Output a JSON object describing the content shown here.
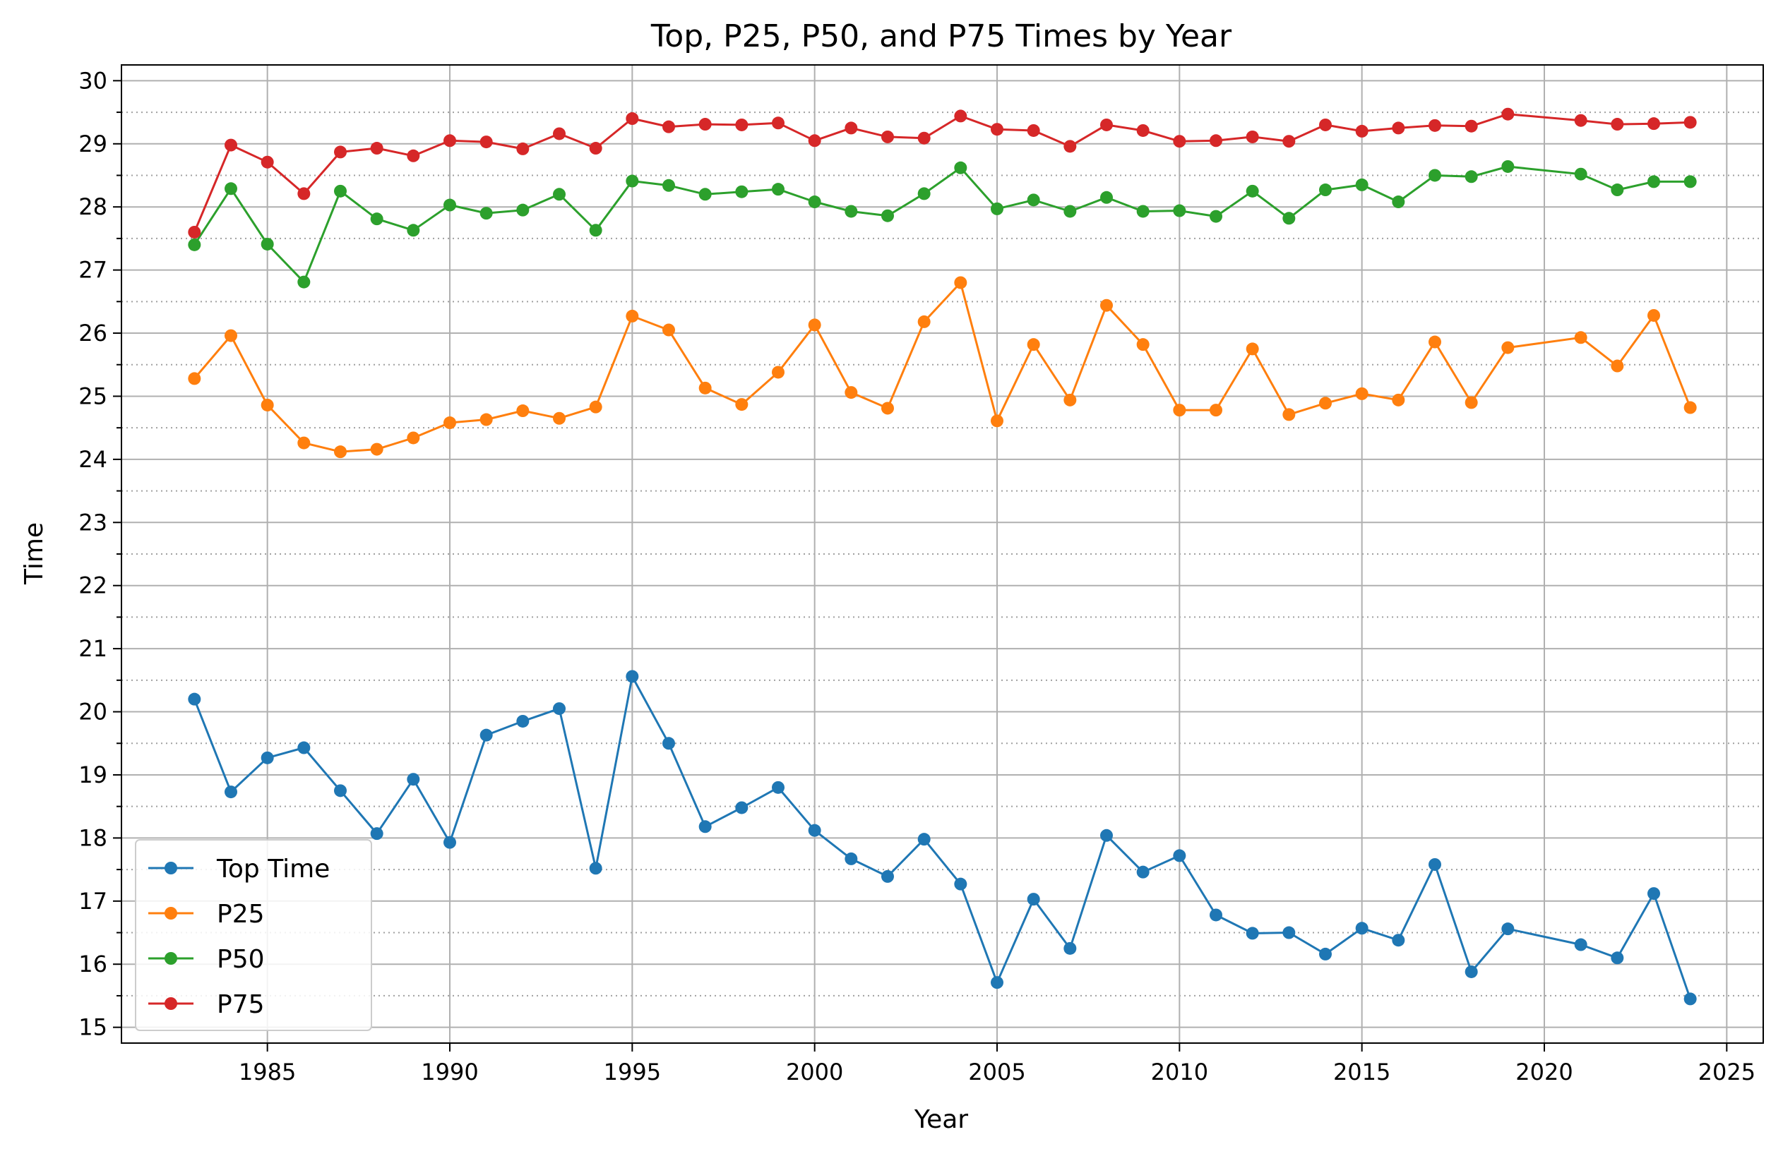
{
  "chart_data": {
    "type": "line",
    "title": "Top, P25, P50, and P75 Times by Year",
    "xlabel": "Year",
    "ylabel": "Time",
    "xlim": [
      1981.0,
      2026.0
    ],
    "ylim": [
      14.75,
      30.25
    ],
    "x_ticks": [
      1985,
      1990,
      1995,
      2000,
      2005,
      2010,
      2015,
      2020,
      2025
    ],
    "y_ticks": [
      15,
      16,
      17,
      18,
      19,
      20,
      21,
      22,
      23,
      24,
      25,
      26,
      27,
      28,
      29,
      30
    ],
    "y_minor_step": 0.5,
    "grid": "major solid, minor dotted on y",
    "legend_position": "lower-left",
    "x": [
      1983,
      1984,
      1985,
      1986,
      1987,
      1988,
      1989,
      1990,
      1991,
      1992,
      1993,
      1994,
      1995,
      1996,
      1997,
      1998,
      1999,
      2000,
      2001,
      2002,
      2003,
      2004,
      2005,
      2006,
      2007,
      2008,
      2009,
      2010,
      2011,
      2012,
      2013,
      2014,
      2015,
      2016,
      2017,
      2018,
      2019,
      2021,
      2022,
      2023,
      2024
    ],
    "series": [
      {
        "name": "Top Time",
        "color": "#1f77b4",
        "values": [
          20.2,
          18.73,
          19.27,
          19.43,
          18.75,
          18.07,
          18.93,
          17.93,
          19.63,
          19.85,
          20.05,
          17.52,
          20.56,
          19.5,
          18.18,
          18.48,
          18.8,
          18.12,
          17.67,
          17.39,
          17.98,
          17.27,
          15.71,
          17.03,
          16.25,
          18.04,
          17.46,
          17.72,
          16.78,
          16.49,
          16.5,
          16.16,
          16.57,
          16.38,
          17.58,
          15.88,
          16.56,
          16.31,
          16.1,
          17.12,
          15.45
        ]
      },
      {
        "name": "P25",
        "color": "#ff7f0e",
        "values": [
          25.28,
          25.96,
          24.86,
          24.26,
          24.12,
          24.16,
          24.34,
          24.58,
          24.63,
          24.77,
          24.65,
          24.83,
          26.27,
          26.05,
          25.13,
          24.87,
          25.38,
          26.13,
          25.06,
          24.81,
          26.18,
          26.8,
          24.61,
          25.82,
          24.94,
          26.44,
          25.82,
          24.78,
          24.78,
          25.75,
          24.71,
          24.89,
          25.04,
          24.94,
          25.86,
          24.9,
          25.77,
          25.93,
          25.48,
          26.28,
          24.82
        ]
      },
      {
        "name": "P50",
        "color": "#2ca02c",
        "values": [
          27.4,
          28.29,
          27.41,
          26.81,
          28.25,
          27.81,
          27.63,
          28.03,
          27.9,
          27.95,
          28.2,
          27.63,
          28.41,
          28.34,
          28.2,
          28.24,
          28.28,
          28.08,
          27.93,
          27.86,
          28.21,
          28.62,
          27.97,
          28.11,
          27.93,
          28.15,
          27.93,
          27.94,
          27.85,
          28.25,
          27.82,
          28.27,
          28.35,
          28.08,
          28.5,
          28.48,
          28.64,
          28.52,
          28.27,
          28.4,
          28.4
        ]
      },
      {
        "name": "P75",
        "color": "#d62728",
        "values": [
          27.6,
          28.98,
          28.71,
          28.21,
          28.87,
          28.93,
          28.81,
          29.05,
          29.03,
          28.92,
          29.16,
          28.93,
          29.4,
          29.27,
          29.31,
          29.3,
          29.33,
          29.05,
          29.25,
          29.11,
          29.09,
          29.44,
          29.23,
          29.21,
          28.96,
          29.3,
          29.21,
          29.04,
          29.05,
          29.11,
          29.04,
          29.3,
          29.2,
          29.25,
          29.29,
          29.28,
          29.47,
          29.37,
          29.31,
          29.32,
          29.34
        ]
      }
    ]
  }
}
